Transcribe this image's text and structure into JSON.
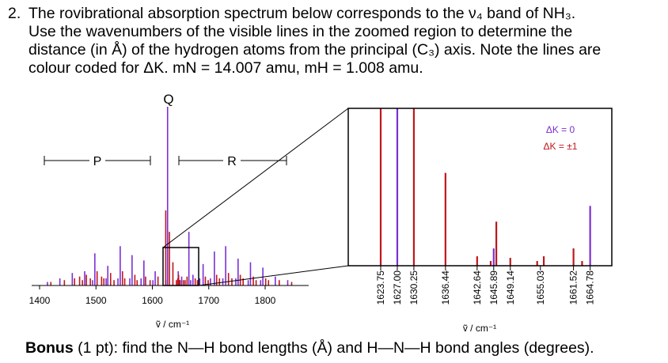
{
  "question": {
    "number": "2.",
    "line1": "The rovibrational absorption spectrum below corresponds to the ν₄ band of NH₃.",
    "line2": "Use the wavenumbers of the visible lines in the zoomed region to determine the",
    "line3": "distance (in Å) of the hydrogen atoms from the principal (C₃) axis. Note the lines are",
    "line4": "colour coded for ΔK. mN = 14.007 amu, mH = 1.008 amu."
  },
  "bonus": {
    "label": "Bonus",
    "text": " (1 pt): find the N—H bond lengths (Å) and H—N—H bond angles (degrees)."
  },
  "chart_data": [
    {
      "type": "bar",
      "title": "",
      "xlabel": "ṽ / cm⁻¹",
      "ylabel": "",
      "xlim": [
        1395,
        1880
      ],
      "xticks": [
        "1400",
        "1500",
        "1600",
        "1700",
        "1800"
      ],
      "branch_labels": {
        "P": "P",
        "Q": "Q",
        "R": "R"
      },
      "branch_ranges": {
        "P": [
          1380,
          1585
        ],
        "R": [
          1625,
          1820
        ]
      },
      "zoom_box": [
        1620,
        1680
      ],
      "colors": {
        "dk0": "#7b2fd6",
        "dk1": "#c0161c"
      },
      "series": [
        {
          "name": "ΔK = 0",
          "lines": [
            {
              "x": 1414,
              "y": 0.02
            },
            {
              "x": 1436,
              "y": 0.04
            },
            {
              "x": 1458,
              "y": 0.07
            },
            {
              "x": 1480,
              "y": 0.08
            },
            {
              "x": 1494,
              "y": 0.03
            },
            {
              "x": 1498,
              "y": 0.18
            },
            {
              "x": 1518,
              "y": 0.04
            },
            {
              "x": 1521,
              "y": 0.11
            },
            {
              "x": 1539,
              "y": 0.04
            },
            {
              "x": 1543,
              "y": 0.22
            },
            {
              "x": 1560,
              "y": 0.04
            },
            {
              "x": 1564,
              "y": 0.17
            },
            {
              "x": 1580,
              "y": 0.04
            },
            {
              "x": 1585,
              "y": 0.14
            },
            {
              "x": 1601,
              "y": 0.03
            },
            {
              "x": 1605,
              "y": 0.08
            },
            {
              "x": 1623.75,
              "y": 0.03
            },
            {
              "x": 1627.0,
              "y": 1.0
            },
            {
              "x": 1645.89,
              "y": 0.08
            },
            {
              "x": 1648,
              "y": 0.03
            },
            {
              "x": 1652,
              "y": 0.05
            },
            {
              "x": 1664.78,
              "y": 0.3
            },
            {
              "x": 1668,
              "y": 0.03
            },
            {
              "x": 1672,
              "y": 0.06
            },
            {
              "x": 1684,
              "y": 0.04
            },
            {
              "x": 1690,
              "y": 0.12
            },
            {
              "x": 1703,
              "y": 0.04
            },
            {
              "x": 1710,
              "y": 0.19
            },
            {
              "x": 1725,
              "y": 0.04
            },
            {
              "x": 1730,
              "y": 0.22
            },
            {
              "x": 1748,
              "y": 0.04
            },
            {
              "x": 1752,
              "y": 0.15
            },
            {
              "x": 1770,
              "y": 0.03
            },
            {
              "x": 1774,
              "y": 0.13
            },
            {
              "x": 1792,
              "y": 0.03
            },
            {
              "x": 1796,
              "y": 0.1
            },
            {
              "x": 1818,
              "y": 0.05
            },
            {
              "x": 1840,
              "y": 0.03
            }
          ]
        },
        {
          "name": "ΔK = ±1",
          "lines": [
            {
              "x": 1420,
              "y": 0.02
            },
            {
              "x": 1444,
              "y": 0.03
            },
            {
              "x": 1462,
              "y": 0.04
            },
            {
              "x": 1471,
              "y": 0.05
            },
            {
              "x": 1476,
              "y": 0.03
            },
            {
              "x": 1483,
              "y": 0.06
            },
            {
              "x": 1490,
              "y": 0.04
            },
            {
              "x": 1502,
              "y": 0.08
            },
            {
              "x": 1510,
              "y": 0.05
            },
            {
              "x": 1514,
              "y": 0.04
            },
            {
              "x": 1526,
              "y": 0.07
            },
            {
              "x": 1532,
              "y": 0.03
            },
            {
              "x": 1547,
              "y": 0.08
            },
            {
              "x": 1551,
              "y": 0.04
            },
            {
              "x": 1569,
              "y": 0.06
            },
            {
              "x": 1573,
              "y": 0.03
            },
            {
              "x": 1588,
              "y": 0.05
            },
            {
              "x": 1596,
              "y": 0.03
            },
            {
              "x": 1610,
              "y": 0.05
            },
            {
              "x": 1623.75,
              "y": 0.42
            },
            {
              "x": 1630.25,
              "y": 0.3
            },
            {
              "x": 1636.44,
              "y": 0.13
            },
            {
              "x": 1642.64,
              "y": 0.03
            },
            {
              "x": 1645.0,
              "y": 0.04
            },
            {
              "x": 1646.6,
              "y": 0.06
            },
            {
              "x": 1649.14,
              "y": 0.03
            },
            {
              "x": 1655.03,
              "y": 0.03
            },
            {
              "x": 1661.52,
              "y": 0.05
            },
            {
              "x": 1658,
              "y": 0.03
            },
            {
              "x": 1676,
              "y": 0.04
            },
            {
              "x": 1680,
              "y": 0.03
            },
            {
              "x": 1694,
              "y": 0.05
            },
            {
              "x": 1699,
              "y": 0.03
            },
            {
              "x": 1714,
              "y": 0.06
            },
            {
              "x": 1719,
              "y": 0.04
            },
            {
              "x": 1735,
              "y": 0.07
            },
            {
              "x": 1741,
              "y": 0.04
            },
            {
              "x": 1756,
              "y": 0.06
            },
            {
              "x": 1761,
              "y": 0.04
            },
            {
              "x": 1779,
              "y": 0.05
            },
            {
              "x": 1784,
              "y": 0.03
            },
            {
              "x": 1801,
              "y": 0.04
            },
            {
              "x": 1806,
              "y": 0.03
            },
            {
              "x": 1825,
              "y": 0.03
            },
            {
              "x": 1847,
              "y": 0.02
            }
          ]
        }
      ]
    },
    {
      "type": "bar",
      "title": "",
      "xlabel": "ṽ / cm⁻¹",
      "xlim": [
        1622,
        1666
      ],
      "legend": [
        "ΔK = 0",
        "ΔK = ±1"
      ],
      "legend_position": "top-right",
      "xticks": [
        "1623.75",
        "1627.00",
        "1630.25",
        "1636.44",
        "1642.64",
        "1645.89",
        "1649.14",
        "1655.03",
        "1661.52",
        "1664.78"
      ],
      "series": [
        {
          "name": "ΔK = 0",
          "lines": [
            {
              "x": 1627.0,
              "y": 1.0
            },
            {
              "x": 1645.89,
              "y": 0.11
            },
            {
              "x": 1664.78,
              "y": 0.38
            }
          ]
        },
        {
          "name": "ΔK = ±1",
          "lines": [
            {
              "x": 1623.75,
              "y": 1.0
            },
            {
              "x": 1630.25,
              "y": 1.0
            },
            {
              "x": 1636.44,
              "y": 0.59
            },
            {
              "x": 1642.64,
              "y": 0.06
            },
            {
              "x": 1645.3,
              "y": 0.03
            },
            {
              "x": 1646.4,
              "y": 0.28
            },
            {
              "x": 1649.14,
              "y": 0.05
            },
            {
              "x": 1654.4,
              "y": 0.03
            },
            {
              "x": 1655.7,
              "y": 0.06
            },
            {
              "x": 1661.52,
              "y": 0.11
            },
            {
              "x": 1663.2,
              "y": 0.03
            }
          ]
        }
      ]
    }
  ]
}
